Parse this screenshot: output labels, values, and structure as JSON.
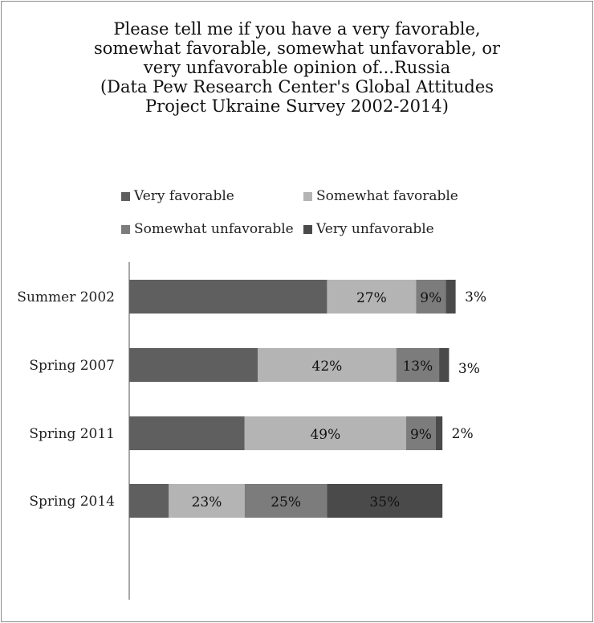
{
  "chart_data": {
    "type": "bar",
    "orientation": "horizontal",
    "stacked": true,
    "title_lines": [
      "Please tell me if you have a very favorable,",
      "somewhat favorable, somewhat unfavorable, or",
      "very unfavorable opinion of...Russia",
      "(Data Pew Research Center's Global Attitudes",
      "Project Ukraine Survey 2002-2014)"
    ],
    "categories": [
      "Summer 2002",
      "Spring 2007",
      "Spring 2011",
      "Spring 2014"
    ],
    "series": [
      {
        "name": "Very favorable",
        "color": "#5f5f5f",
        "values": [
          60,
          39,
          35,
          12
        ],
        "labels": [
          "",
          "",
          "",
          ""
        ]
      },
      {
        "name": "Somewhat favorable",
        "color": "#b4b4b4",
        "values": [
          27,
          42,
          49,
          23
        ],
        "labels": [
          "27%",
          "42%",
          "49%",
          "23%"
        ]
      },
      {
        "name": "Somewhat unfavorable",
        "color": "#7c7c7c",
        "values": [
          9,
          13,
          9,
          25
        ],
        "labels": [
          "9%",
          "13%",
          "9%",
          "25%"
        ]
      },
      {
        "name": "Very unfavorable",
        "color": "#4a4a4a",
        "values": [
          3,
          3,
          2,
          35
        ],
        "labels": [
          "3%",
          "3%",
          "2%",
          "35%"
        ]
      }
    ],
    "label_placement": [
      "inside",
      "inside",
      "inside",
      "inside|outside-small"
    ],
    "xlim": [
      0,
      140
    ],
    "legend_position": "top",
    "grid": false
  }
}
